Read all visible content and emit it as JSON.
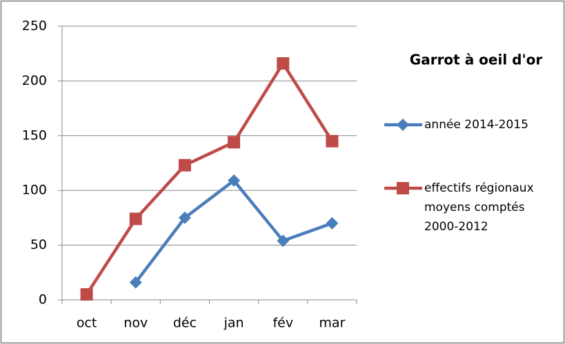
{
  "chart_data": {
    "type": "line",
    "title": "Garrot à oeil d'or",
    "categories": [
      "oct",
      "nov",
      "déc",
      "jan",
      "fév",
      "mar"
    ],
    "series": [
      {
        "name": "année 2014-2015",
        "color": "#4a7ebb",
        "marker": "diamond",
        "values": [
          null,
          16,
          75,
          109,
          54,
          70
        ]
      },
      {
        "name": "effectifs régionaux moyens comptés 2000-2012",
        "color": "#be4b48",
        "marker": "square",
        "values": [
          5,
          74,
          123,
          144,
          216,
          145
        ]
      }
    ],
    "ylim": [
      0,
      250
    ],
    "yticks": [
      0,
      50,
      100,
      150,
      200,
      250
    ],
    "grid": true,
    "legend": "right"
  }
}
